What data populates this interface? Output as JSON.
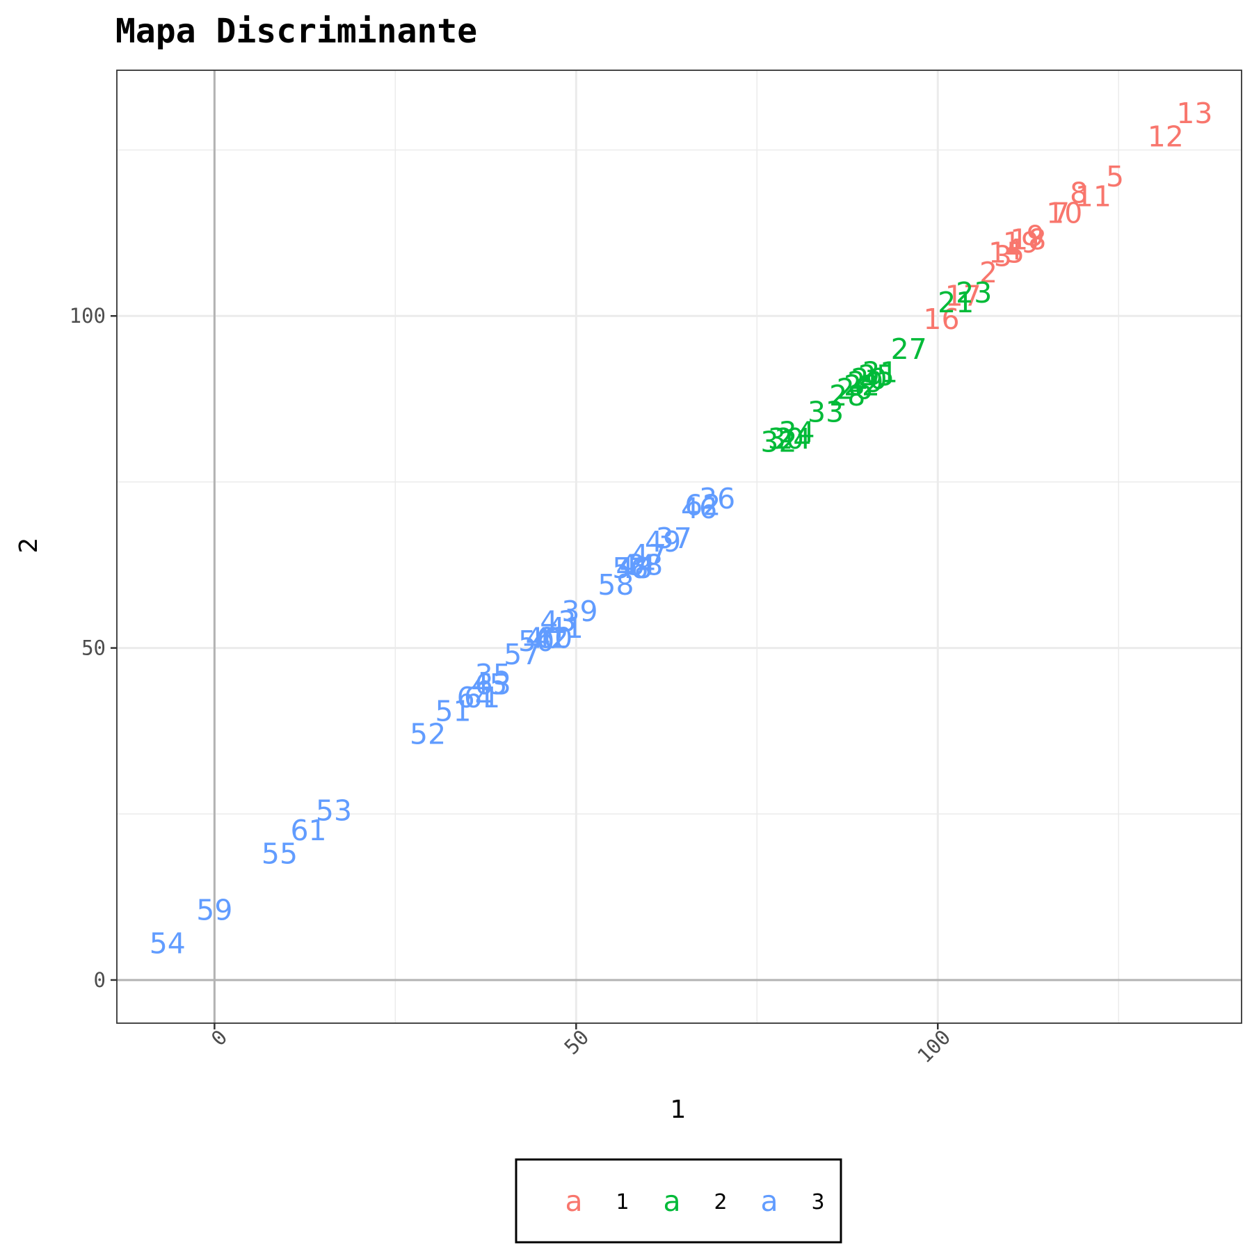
{
  "chart_data": {
    "type": "scatter",
    "title": "Mapa Discriminante",
    "xlabel": "1",
    "ylabel": "2",
    "xlim": [
      -13.5,
      142
    ],
    "ylim": [
      -6.5,
      137
    ],
    "x_ticks": [
      0,
      50,
      100
    ],
    "y_ticks": [
      0,
      50,
      100
    ],
    "x_tick_labels": [
      "0",
      "50",
      "100"
    ],
    "y_tick_labels": [
      "0",
      "50",
      "100"
    ],
    "grid": true,
    "reference_lines": {
      "x": 0,
      "y": 0
    },
    "legend": {
      "position": "bottom",
      "key_glyph": "a",
      "entries": [
        "1",
        "2",
        "3"
      ]
    },
    "colors": {
      "1": "#F8766D",
      "2": "#00BA38",
      "3": "#619CFF"
    },
    "series": [
      {
        "name": "1",
        "points": [
          {
            "label": "13",
            "x": 135.5,
            "y": 130.5
          },
          {
            "label": "12",
            "x": 131.5,
            "y": 127
          },
          {
            "label": "5",
            "x": 124.5,
            "y": 121
          },
          {
            "label": "11",
            "x": 121.5,
            "y": 118
          },
          {
            "label": "8",
            "x": 119.5,
            "y": 118.5
          },
          {
            "label": "10",
            "x": 117.5,
            "y": 115.5
          },
          {
            "label": "7",
            "x": 117,
            "y": 115.5
          },
          {
            "label": "9",
            "x": 113.5,
            "y": 112
          },
          {
            "label": "18",
            "x": 112.5,
            "y": 111.5
          },
          {
            "label": "19",
            "x": 111.5,
            "y": 111
          },
          {
            "label": "4",
            "x": 110.5,
            "y": 110
          },
          {
            "label": "15",
            "x": 109.5,
            "y": 109.5
          },
          {
            "label": "3",
            "x": 109,
            "y": 109
          },
          {
            "label": "2",
            "x": 107,
            "y": 106.5
          },
          {
            "label": "17",
            "x": 103.5,
            "y": 103
          },
          {
            "label": "16",
            "x": 100.5,
            "y": 99.5
          }
        ]
      },
      {
        "name": "2",
        "points": [
          {
            "label": "23",
            "x": 105,
            "y": 103.5
          },
          {
            "label": "21",
            "x": 102.5,
            "y": 102
          },
          {
            "label": "27",
            "x": 96,
            "y": 95
          },
          {
            "label": "31",
            "x": 92,
            "y": 91.5
          },
          {
            "label": "25",
            "x": 91.5,
            "y": 91
          },
          {
            "label": "20",
            "x": 90.5,
            "y": 90.5
          },
          {
            "label": "29",
            "x": 90,
            "y": 90
          },
          {
            "label": "22",
            "x": 89.5,
            "y": 89.5
          },
          {
            "label": "26",
            "x": 88.5,
            "y": 89
          },
          {
            "label": "28",
            "x": 87.5,
            "y": 88
          },
          {
            "label": "33",
            "x": 84.5,
            "y": 85.5
          },
          {
            "label": "34",
            "x": 80.5,
            "y": 82.5
          },
          {
            "label": "24",
            "x": 80,
            "y": 81.5
          },
          {
            "label": "30",
            "x": 79,
            "y": 81.5
          },
          {
            "label": "32",
            "x": 78,
            "y": 81
          }
        ]
      },
      {
        "name": "3",
        "points": [
          {
            "label": "36",
            "x": 69.5,
            "y": 72.5
          },
          {
            "label": "62",
            "x": 67.5,
            "y": 71.5
          },
          {
            "label": "46",
            "x": 67,
            "y": 71
          },
          {
            "label": "37",
            "x": 63.5,
            "y": 66.5
          },
          {
            "label": "49",
            "x": 62,
            "y": 66
          },
          {
            "label": "47",
            "x": 60,
            "y": 64
          },
          {
            "label": "38",
            "x": 59.5,
            "y": 62.5
          },
          {
            "label": "48",
            "x": 58,
            "y": 62
          },
          {
            "label": "44",
            "x": 58.5,
            "y": 62.5
          },
          {
            "label": "56",
            "x": 57.5,
            "y": 62
          },
          {
            "label": "58",
            "x": 55.5,
            "y": 59.5
          },
          {
            "label": "39",
            "x": 50.5,
            "y": 55.5
          },
          {
            "label": "41",
            "x": 48.5,
            "y": 53
          },
          {
            "label": "43",
            "x": 47.5,
            "y": 54
          },
          {
            "label": "60",
            "x": 47,
            "y": 51.5
          },
          {
            "label": "42",
            "x": 46.5,
            "y": 51.5
          },
          {
            "label": "40",
            "x": 45.5,
            "y": 51.5
          },
          {
            "label": "50",
            "x": 44.5,
            "y": 51
          },
          {
            "label": "57",
            "x": 42.5,
            "y": 49
          },
          {
            "label": "59",
            "x": 0,
            "y": 10.5
          },
          {
            "label": "45",
            "x": 38,
            "y": 44.5
          },
          {
            "label": "35",
            "x": 38.5,
            "y": 46
          },
          {
            "label": "63",
            "x": 38.5,
            "y": 44.5
          },
          {
            "label": "61",
            "x": 37,
            "y": 42.5
          },
          {
            "label": "64",
            "x": 36,
            "y": 42.5
          },
          {
            "label": "51",
            "x": 33,
            "y": 40.5
          },
          {
            "label": "52",
            "x": 29.5,
            "y": 37
          },
          {
            "label": "53",
            "x": 16.5,
            "y": 25.5
          },
          {
            "label": "61",
            "x": 13,
            "y": 22.5
          },
          {
            "label": "55",
            "x": 9,
            "y": 19
          },
          {
            "label": "54",
            "x": -6.5,
            "y": 5.5
          }
        ]
      }
    ]
  }
}
